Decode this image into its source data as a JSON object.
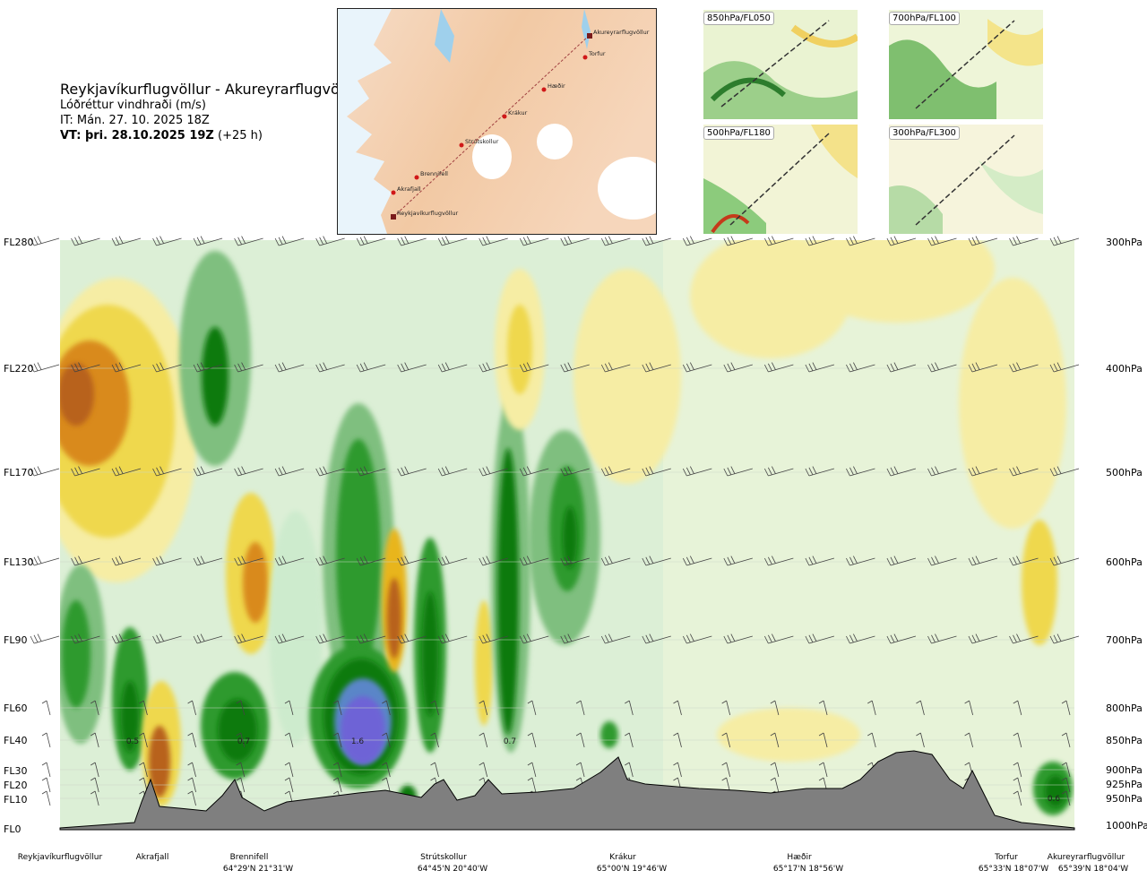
{
  "header": {
    "route": "Reykjavíkurflugvöllur - Akureyrarflugvöllur",
    "variable": "Lóðréttur vindhraði (m/s)",
    "init_time": "IT: Mán. 27. 10. 2025 18Z",
    "valid_prefix": "VT: þri. 28.10.2025 19Z",
    "valid_suffix": "(+25 h)"
  },
  "map": {
    "points": [
      {
        "name": "Akureyrarflugvöllur",
        "kind": "airport"
      },
      {
        "name": "Torfur",
        "kind": "waypoint"
      },
      {
        "name": "Hæðir",
        "kind": "waypoint"
      },
      {
        "name": "Krákur",
        "kind": "waypoint"
      },
      {
        "name": "Strútskollur",
        "kind": "waypoint"
      },
      {
        "name": "Brennifell",
        "kind": "waypoint"
      },
      {
        "name": "Akrafjall",
        "kind": "waypoint"
      },
      {
        "name": "Reykjavíkurflugvöllur",
        "kind": "airport"
      }
    ]
  },
  "thumbnails": [
    {
      "label": "850hPa/FL050"
    },
    {
      "label": "700hPa/FL100"
    },
    {
      "label": "500hPa/FL180"
    },
    {
      "label": "300hPa/FL300"
    }
  ],
  "chart_data": {
    "type": "heatmap",
    "title": "Lóðréttur vindhraði (m/s)",
    "left_axis_ticks": [
      "FL280",
      "FL220",
      "FL170",
      "FL130",
      "FL90",
      "FL60",
      "FL40",
      "FL30",
      "FL20",
      "FL10",
      "FL0"
    ],
    "right_axis_ticks": [
      "300hPa",
      "400hPa",
      "500hPa",
      "600hPa",
      "700hPa",
      "800hPa",
      "850hPa",
      "900hPa",
      "925hPa",
      "950hPa",
      "1000hPa"
    ],
    "stations": [
      {
        "name": "Reykjavíkurflugvöllur",
        "coord": ""
      },
      {
        "name": "Akrafjall",
        "coord": ""
      },
      {
        "name": "Brennifell",
        "coord": "64°29'N 21°31'W"
      },
      {
        "name": "Strútskollur",
        "coord": "64°45'N 20°40'W"
      },
      {
        "name": "Krákur",
        "coord": "65°00'N 19°46'W"
      },
      {
        "name": "Hæðir",
        "coord": "65°17'N 18°56'W"
      },
      {
        "name": "Torfur",
        "coord": "65°33'N 18°07'W"
      },
      {
        "name": "Akureyrarflugvöllur",
        "coord": "65°39'N 18°04'W"
      }
    ],
    "peak_labels": [
      "0.5",
      "0.7",
      "1.6",
      "0.7",
      "0.6"
    ],
    "colors": {
      "strong_up": "#6e63d6",
      "up3": "#0e7a0e",
      "up2": "#2e9a2e",
      "up1": "#7fbf7f",
      "up0": "#cdebcd",
      "neutral": "#f7fbef",
      "down0": "#f6eda4",
      "down1": "#efd84e",
      "down2": "#e8b51e",
      "down3": "#d98a1c",
      "down4": "#b8621a",
      "terrain": "#7f7f7f"
    }
  }
}
